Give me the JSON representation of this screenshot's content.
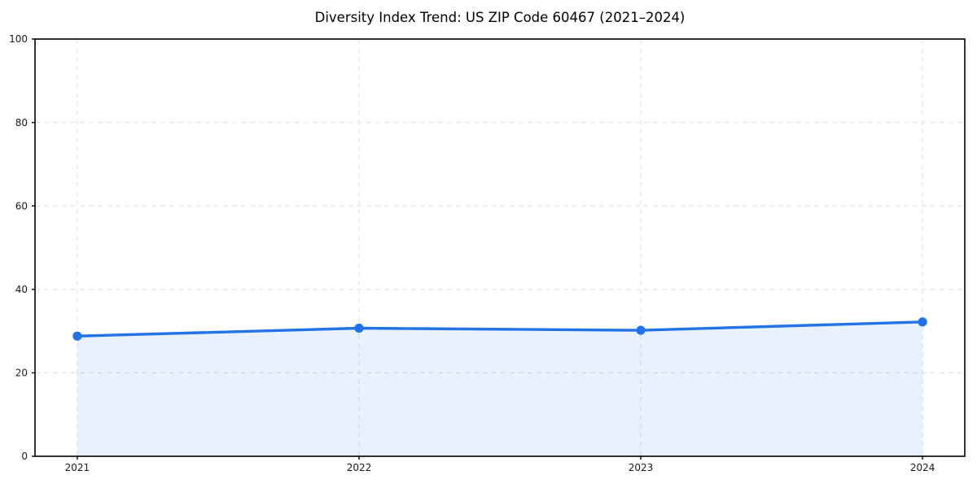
{
  "chart_data": {
    "type": "line",
    "title": "Diversity Index Trend: US ZIP Code 60467 (2021–2024)",
    "categories": [
      "2021",
      "2022",
      "2023",
      "2024"
    ],
    "values": [
      28.8,
      30.7,
      30.2,
      32.2
    ],
    "xlabel": "",
    "ylabel": "",
    "ylim": [
      0,
      100
    ],
    "yticks": [
      0,
      20,
      40,
      60,
      80,
      100
    ],
    "grid": true,
    "grid_style": "dashed",
    "legend": "none",
    "area_fill": true,
    "colors": {
      "line": "#2272e8",
      "marker": "#2272e8",
      "area_fill": "rgba(34,114,232,0.10)",
      "grid": "#e3e3e3",
      "axis": "#000000",
      "tick_label": "#1a1a1a",
      "background": "#ffffff"
    }
  }
}
